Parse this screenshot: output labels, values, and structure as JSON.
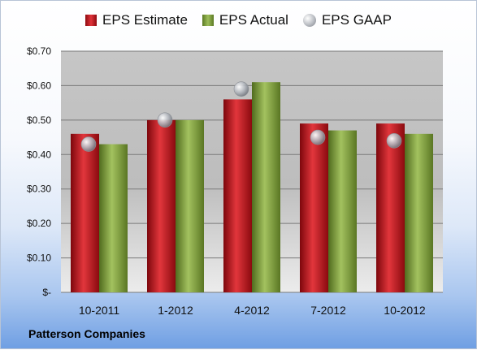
{
  "chart_data": {
    "type": "bar",
    "categories": [
      "10-2011",
      "1-2012",
      "4-2012",
      "7-2012",
      "10-2012"
    ],
    "series": [
      {
        "name": "EPS Estimate",
        "type": "bar",
        "color": "#c8171d",
        "values": [
          0.46,
          0.5,
          0.56,
          0.49,
          0.49
        ]
      },
      {
        "name": "EPS Actual",
        "type": "bar",
        "color": "#8aab47",
        "values": [
          0.43,
          0.5,
          0.61,
          0.47,
          0.46
        ]
      },
      {
        "name": "EPS GAAP",
        "type": "scatter",
        "color": "#a8acb3",
        "values": [
          0.43,
          0.5,
          0.59,
          0.45,
          0.44
        ]
      }
    ],
    "ylim": [
      0,
      0.7
    ],
    "y_ticks": [
      0,
      0.1,
      0.2,
      0.3,
      0.4,
      0.5,
      0.6,
      0.7
    ],
    "y_tick_labels": [
      "$-",
      "$0.10",
      "$0.20",
      "$0.30",
      "$0.40",
      "$0.50",
      "$0.60",
      "$0.70"
    ],
    "grid": true,
    "legend_position": "top"
  },
  "footer": {
    "company": "Patterson Companies"
  }
}
